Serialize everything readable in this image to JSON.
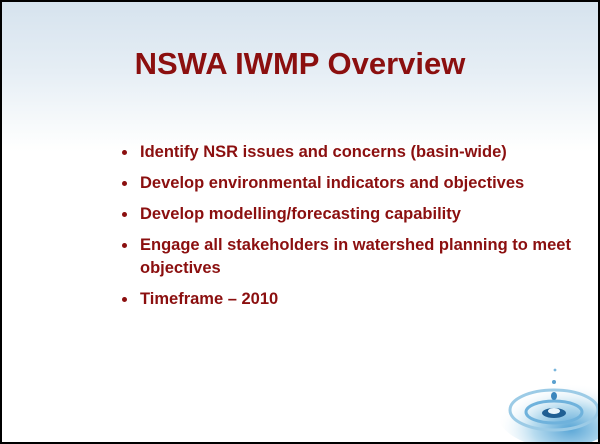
{
  "slide": {
    "title": "NSWA IWMP Overview",
    "bullets": [
      "Identify NSR issues and concerns (basin-wide)",
      "Develop environmental indicators and objectives",
      "Develop modelling/forecasting capability",
      "Engage all stakeholders in watershed planning to meet objectives",
      "Timeframe – 2010"
    ]
  }
}
